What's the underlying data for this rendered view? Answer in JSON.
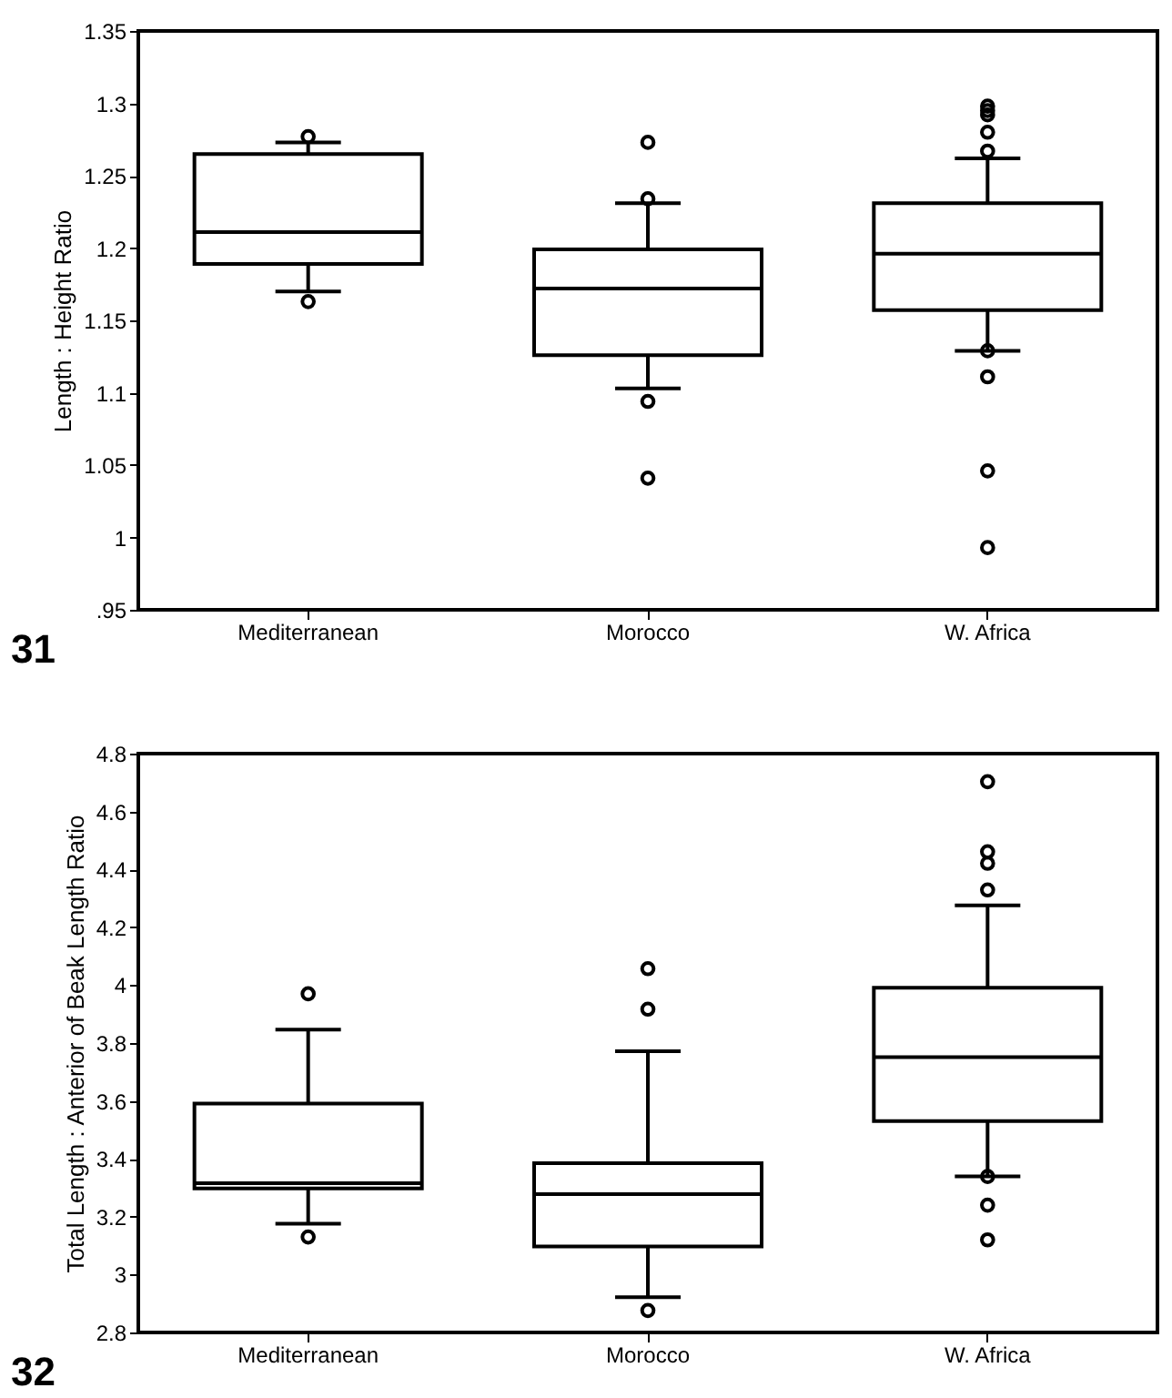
{
  "chart_data": [
    {
      "type": "box",
      "ylabel": "Length : Height Ratio",
      "annotations": [
        "31"
      ],
      "categories": [
        "Mediterranean",
        "Morocco",
        "W. Africa"
      ],
      "boxes": [
        {
          "low": 1.17,
          "q1": 1.189,
          "median": 1.211,
          "q3": 1.265,
          "high": 1.273,
          "outliers": [
            1.277,
            1.163
          ]
        },
        {
          "low": 1.103,
          "q1": 1.126,
          "median": 1.172,
          "q3": 1.199,
          "high": 1.231,
          "outliers": [
            1.273,
            1.234,
            1.094,
            1.041
          ]
        },
        {
          "low": 1.129,
          "q1": 1.157,
          "median": 1.196,
          "q3": 1.231,
          "high": 1.262,
          "outliers": [
            1.298,
            1.295,
            1.292,
            1.28,
            1.267,
            1.129,
            1.111,
            1.046,
            0.993
          ]
        }
      ],
      "ylim": [
        0.95,
        1.35
      ],
      "yticks": [
        {
          "value": 0.95,
          "label": ".95"
        },
        1,
        1.05,
        1.1,
        1.15,
        1.2,
        1.25,
        1.3,
        1.35
      ]
    },
    {
      "type": "box",
      "ylabel": "Total Length : Anterior of Beak Length Ratio",
      "annotations": [
        "32"
      ],
      "categories": [
        "Mediterranean",
        "Morocco",
        "W. Africa"
      ],
      "boxes": [
        {
          "low": 3.176,
          "q1": 3.298,
          "median": 3.316,
          "q3": 3.591,
          "high": 3.846,
          "outliers": [
            3.97,
            3.13
          ]
        },
        {
          "low": 2.922,
          "q1": 3.097,
          "median": 3.278,
          "q3": 3.385,
          "high": 3.772,
          "outliers": [
            4.057,
            3.917,
            2.876
          ]
        },
        {
          "low": 3.339,
          "q1": 3.53,
          "median": 3.751,
          "q3": 3.991,
          "high": 4.276,
          "outliers": [
            4.703,
            4.461,
            4.421,
            4.329,
            3.339,
            3.24,
            3.12
          ]
        }
      ],
      "ylim": [
        2.8,
        4.8
      ],
      "yticks": [
        2.8,
        3,
        3.2,
        3.4,
        3.6,
        3.8,
        4,
        4.2,
        4.4,
        4.6,
        4.8
      ]
    }
  ]
}
